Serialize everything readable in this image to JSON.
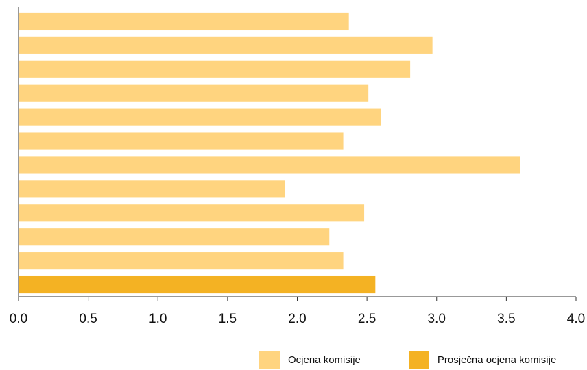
{
  "chart_data": {
    "type": "bar",
    "orientation": "horizontal",
    "xlim": [
      0,
      4
    ],
    "xticks": [
      "0.0",
      "0.5",
      "1.0",
      "1.5",
      "2.0",
      "2.5",
      "3.0",
      "3.5",
      "4.0"
    ],
    "values": [
      2.37,
      2.97,
      2.81,
      2.51,
      2.6,
      2.33,
      3.6,
      1.91,
      2.48,
      2.23,
      2.33,
      2.56
    ],
    "highlight_index": 11,
    "legend": {
      "position": "bottom-right",
      "items": [
        {
          "label": "Ocjena komisije",
          "color": "#FFD47F"
        },
        {
          "label": "Prosječna ocjena komisije",
          "color": "#F4B223"
        }
      ]
    },
    "colors": {
      "bar": "#FFD47F",
      "highlight": "#F4B223",
      "axis": "#333333"
    },
    "grid": false
  }
}
